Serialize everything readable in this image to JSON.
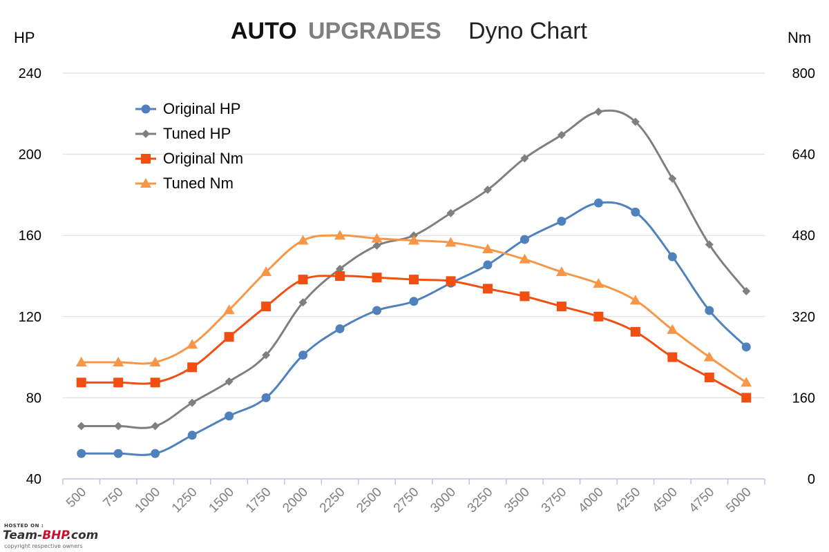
{
  "title": {
    "brand_auto": "AUTO",
    "brand_upgrades": "UPGRADES",
    "subtitle": "Dyno Chart"
  },
  "watermark": {
    "hosted_on": "HOSTED ON :",
    "logo_prefix": "Team-",
    "logo_red": "BHP",
    "logo_suffix": ".com",
    "copyright": "copyright respective owners"
  },
  "chart_data": {
    "type": "line",
    "title": "AUTO UPGRADES Dyno Chart",
    "xlabel": "",
    "y_left_label": "HP",
    "y_right_label": "Nm",
    "categories": [
      "500",
      "750",
      "1000",
      "1250",
      "1500",
      "1750",
      "2000",
      "2250",
      "2500",
      "2750",
      "3000",
      "3250",
      "3500",
      "3750",
      "4000",
      "4250",
      "4500",
      "4750",
      "5000"
    ],
    "y_left": {
      "min": 40,
      "max": 240,
      "ticks": [
        40,
        80,
        120,
        160,
        200,
        240
      ]
    },
    "y_right": {
      "min": 0,
      "max": 800,
      "ticks": [
        0,
        160,
        320,
        480,
        640,
        800
      ]
    },
    "grid": true,
    "legend_position": "top-left",
    "series": [
      {
        "name": "Original HP",
        "axis": "left",
        "color": "#4f81bd",
        "marker": "circle",
        "values": [
          52.5,
          52.5,
          52.5,
          61.5,
          71,
          80,
          101,
          114,
          123,
          127.5,
          136.5,
          145.5,
          158,
          167,
          176,
          171.5,
          149.5,
          123,
          105
        ]
      },
      {
        "name": "Tuned HP",
        "axis": "left",
        "color": "#7f7f7f",
        "marker": "diamond",
        "values": [
          66,
          66,
          66,
          77.5,
          88,
          101,
          127,
          143.5,
          155,
          160,
          171,
          182.5,
          198,
          209.5,
          221,
          216,
          188,
          155.5,
          132.5
        ]
      },
      {
        "name": "Original Nm",
        "axis": "right",
        "color": "#f24e12",
        "marker": "square",
        "values": [
          190,
          190,
          190,
          220,
          280,
          340,
          393,
          400,
          397,
          393,
          390,
          375,
          360,
          340,
          320,
          290,
          240,
          200,
          160
        ]
      },
      {
        "name": "Tuned Nm",
        "axis": "right",
        "color": "#f79646",
        "marker": "triangle",
        "values": [
          230,
          230,
          230,
          265,
          333,
          408,
          470,
          480,
          474,
          470,
          466,
          453,
          433,
          408,
          385,
          352,
          294,
          240,
          190
        ]
      }
    ]
  }
}
